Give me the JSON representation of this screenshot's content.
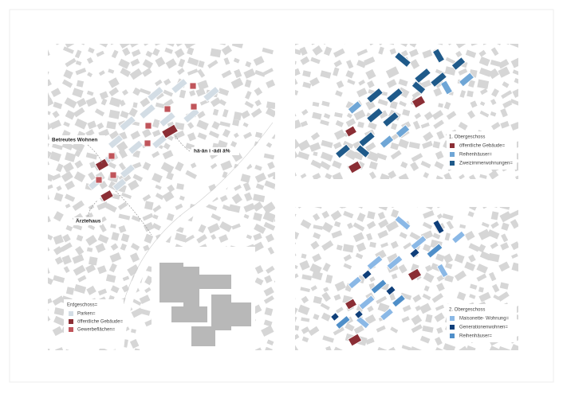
{
  "left_map": {
    "labels": {
      "betreutes_wohnen": "Betreutes Wohnen",
      "mehrgeneration": "hä-ān i -ädi ä%",
      "aerztehaus": "Ärztehaus"
    },
    "legend": {
      "title": "Erdgeschoss=",
      "items": [
        "Parken=",
        "öffentliche Gebäude=",
        "Gewerbeflächen="
      ]
    }
  },
  "top_right": {
    "legend": {
      "title": "1. Obergeschoss",
      "items": [
        "öffentliche Gebäude=",
        "Reihenhäuser=",
        "Zweizimmerwohnungen="
      ]
    }
  },
  "bottom_right": {
    "legend": {
      "title": "2. Obergeschoss",
      "items": [
        "Maisonette- Wohnung=",
        "Generationenwohnen=",
        "Reihenhäuser="
      ]
    }
  }
}
